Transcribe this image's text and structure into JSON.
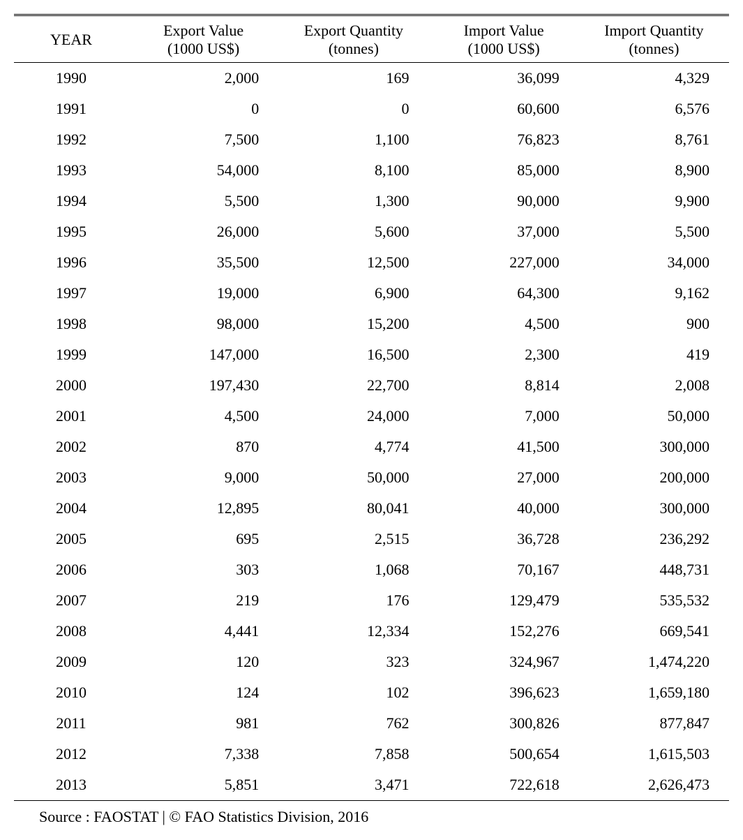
{
  "table": {
    "columns": [
      {
        "key": "year",
        "label_line1": "YEAR",
        "label_line2": ""
      },
      {
        "key": "export_value",
        "label_line1": "Export Value",
        "label_line2": "(1000 US$)"
      },
      {
        "key": "export_qty",
        "label_line1": "Export Quantity",
        "label_line2": "(tonnes)"
      },
      {
        "key": "import_value",
        "label_line1": "Import Value",
        "label_line2": "(1000 US$)"
      },
      {
        "key": "import_qty",
        "label_line1": "Import Quantity",
        "label_line2": "(tonnes)"
      }
    ],
    "rows": [
      [
        "1990",
        "2,000",
        "169",
        "36,099",
        "4,329"
      ],
      [
        "1991",
        "0",
        "0",
        "60,600",
        "6,576"
      ],
      [
        "1992",
        "7,500",
        "1,100",
        "76,823",
        "8,761"
      ],
      [
        "1993",
        "54,000",
        "8,100",
        "85,000",
        "8,900"
      ],
      [
        "1994",
        "5,500",
        "1,300",
        "90,000",
        "9,900"
      ],
      [
        "1995",
        "26,000",
        "5,600",
        "37,000",
        "5,500"
      ],
      [
        "1996",
        "35,500",
        "12,500",
        "227,000",
        "34,000"
      ],
      [
        "1997",
        "19,000",
        "6,900",
        "64,300",
        "9,162"
      ],
      [
        "1998",
        "98,000",
        "15,200",
        "4,500",
        "900"
      ],
      [
        "1999",
        "147,000",
        "16,500",
        "2,300",
        "419"
      ],
      [
        "2000",
        "197,430",
        "22,700",
        "8,814",
        "2,008"
      ],
      [
        "2001",
        "4,500",
        "24,000",
        "7,000",
        "50,000"
      ],
      [
        "2002",
        "870",
        "4,774",
        "41,500",
        "300,000"
      ],
      [
        "2003",
        "9,000",
        "50,000",
        "27,000",
        "200,000"
      ],
      [
        "2004",
        "12,895",
        "80,041",
        "40,000",
        "300,000"
      ],
      [
        "2005",
        "695",
        "2,515",
        "36,728",
        "236,292"
      ],
      [
        "2006",
        "303",
        "1,068",
        "70,167",
        "448,731"
      ],
      [
        "2007",
        "219",
        "176",
        "129,479",
        "535,532"
      ],
      [
        "2008",
        "4,441",
        "12,334",
        "152,276",
        "669,541"
      ],
      [
        "2009",
        "120",
        "323",
        "324,967",
        "1,474,220"
      ],
      [
        "2010",
        "124",
        "102",
        "396,623",
        "1,659,180"
      ],
      [
        "2011",
        "981",
        "762",
        "300,826",
        "877,847"
      ],
      [
        "2012",
        "7,338",
        "7,858",
        "500,654",
        "1,615,503"
      ],
      [
        "2013",
        "5,851",
        "3,471",
        "722,618",
        "2,626,473"
      ]
    ],
    "column_align": [
      "center",
      "right",
      "right",
      "right",
      "right"
    ],
    "border_color": "#000000",
    "background_color": "#ffffff",
    "font_size_pt": 16,
    "header_double_rule": true
  },
  "source_text": "Source : FAOSTAT | © FAO Statistics Division, 2016"
}
